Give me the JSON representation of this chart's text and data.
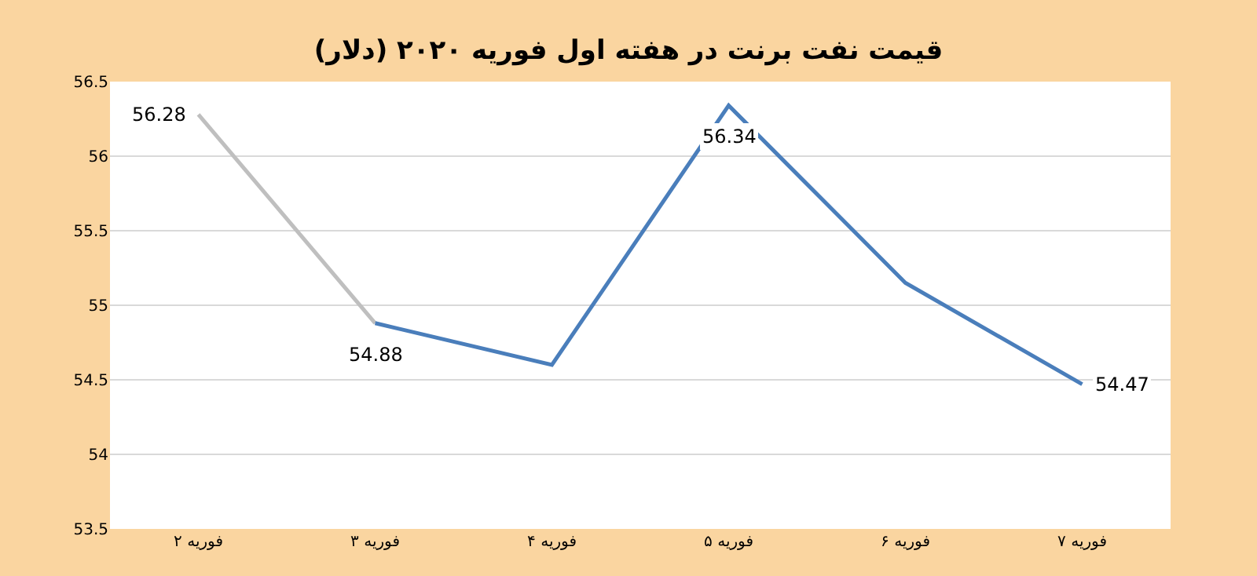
{
  "chart_data": {
    "type": "line",
    "title": "قیمت نفت برنت در هفته اول فوریه ۲۰۲۰ (دلار)",
    "categories": [
      "۲ فوریه",
      "۳ فوریه",
      "۴ فوریه",
      "۵ فوریه",
      "۶ فوریه",
      "۷ فوریه"
    ],
    "series": [
      {
        "color": "#bfbfbf",
        "values": [
          56.28,
          54.88,
          null,
          null,
          null,
          null
        ],
        "value_labels": [
          "56.28",
          null,
          null,
          null,
          null,
          null
        ]
      },
      {
        "color": "#4a7ebb",
        "values": [
          null,
          54.88,
          54.6,
          56.34,
          55.15,
          54.47
        ],
        "value_labels": [
          null,
          "54.88",
          null,
          "56.34",
          null,
          "54.47"
        ]
      }
    ],
    "ylim": [
      53.5,
      56.5
    ],
    "yticks": [
      53.5,
      54,
      54.5,
      55,
      55.5,
      56,
      56.5
    ],
    "grid": "y",
    "marker": "none",
    "line_style": "solid"
  }
}
